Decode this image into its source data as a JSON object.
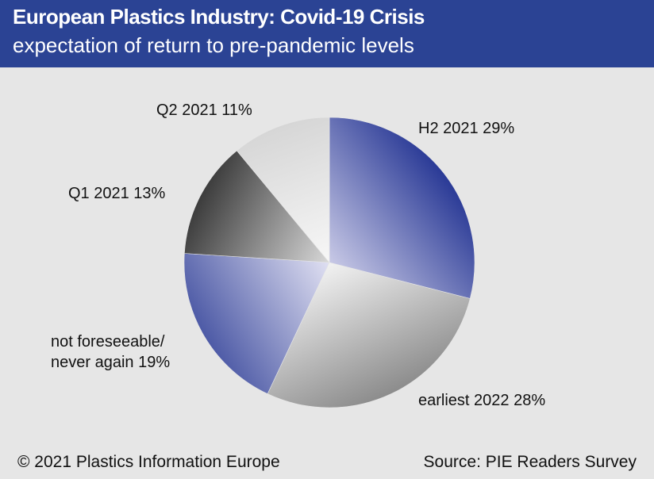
{
  "header": {
    "title": "European Plastics Industry: Covid-19  Crisis",
    "subtitle": "expectation of return to pre-pandemic levels"
  },
  "footer": {
    "copyright": "© 2021 Plastics Information  Europe",
    "source": "Source: PIE Readers Survey"
  },
  "colors": {
    "header_bg": "#2b4394",
    "background": "#e6e6e6"
  },
  "chart_data": {
    "type": "pie",
    "title": "European Plastics Industry: Covid-19  Crisis",
    "subtitle": "expectation of return to pre-pandemic levels",
    "slices": [
      {
        "label": "H2 2021",
        "value": 29,
        "label_text": "H2 2021 29%",
        "colors": [
          "#c8c9e6",
          "#2a3a96"
        ]
      },
      {
        "label": "earliest 2022",
        "value": 28,
        "label_text": "earliest 2022 28%",
        "colors": [
          "#f2f2f2",
          "#8c8c8c"
        ]
      },
      {
        "label": "not foreseeable/ never again",
        "value": 19,
        "label_lines": [
          "not foreseeable/",
          "never again 19%"
        ],
        "colors": [
          "#e0e0f2",
          "#4d5aa6"
        ]
      },
      {
        "label": "Q1 2021",
        "value": 13,
        "label_text": "Q1 2021 13%",
        "colors": [
          "#d8d8d8",
          "#3c3c3c"
        ]
      },
      {
        "label": "Q2 2021",
        "value": 11,
        "label_text": "Q2 2021 11%",
        "colors": [
          "#f7f7f7",
          "#d6d6d6"
        ]
      }
    ]
  }
}
